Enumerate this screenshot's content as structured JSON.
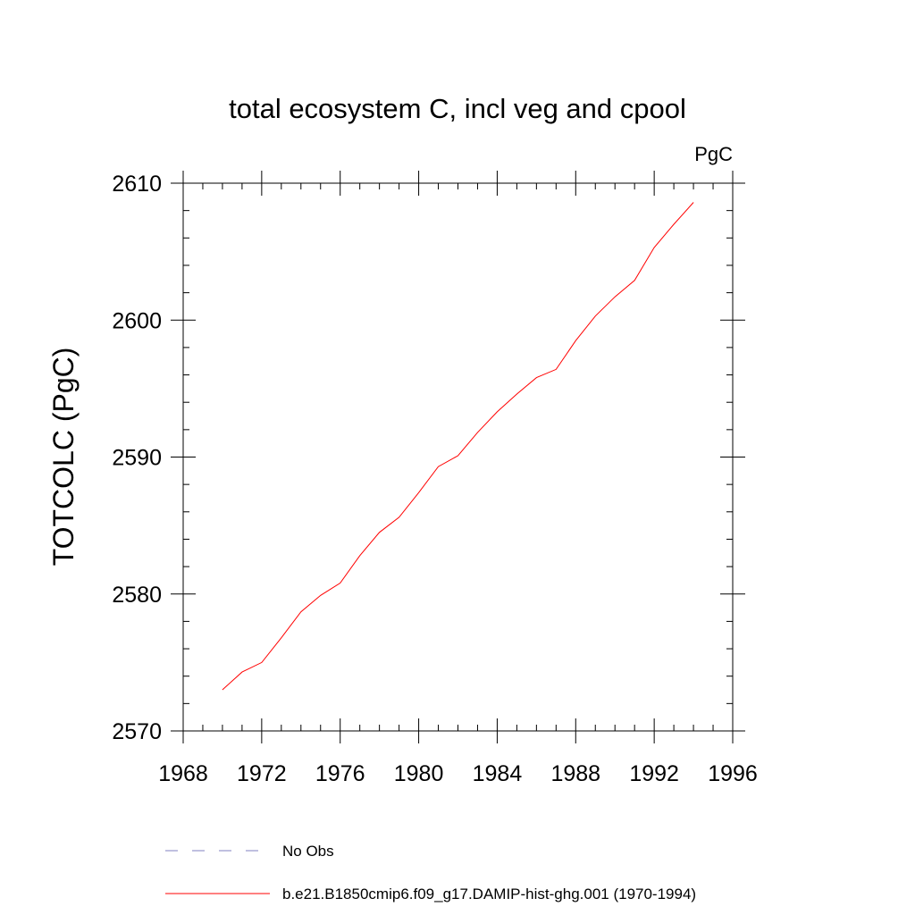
{
  "chart_data": {
    "type": "line",
    "title": "total ecosystem C, incl veg and cpool",
    "units": "PgC",
    "xlabel": "",
    "ylabel": "TOTCOLC  (PgC)",
    "xlim": [
      1968,
      1996
    ],
    "ylim": [
      2570,
      2610
    ],
    "x_ticks": [
      1968,
      1972,
      1976,
      1980,
      1984,
      1988,
      1992,
      1996
    ],
    "y_ticks": [
      2570,
      2580,
      2590,
      2600,
      2610
    ],
    "grid": false,
    "legend_position": "bottom",
    "series": [
      {
        "name": "b.e21.B1850cmip6.f09_g17.DAMIP-hist-ghg.001 (1970-1994)",
        "color": "#ff0000",
        "style": "solid",
        "x": [
          1970,
          1971,
          1972,
          1973,
          1974,
          1975,
          1976,
          1977,
          1978,
          1979,
          1980,
          1981,
          1982,
          1983,
          1984,
          1985,
          1986,
          1987,
          1988,
          1989,
          1990,
          1991,
          1992,
          1993,
          1994
        ],
        "y": [
          2573.0,
          2574.3,
          2575.0,
          2576.8,
          2578.7,
          2579.9,
          2580.8,
          2582.8,
          2584.5,
          2585.6,
          2587.4,
          2589.3,
          2590.1,
          2591.8,
          2593.3,
          2594.6,
          2595.8,
          2596.4,
          2598.5,
          2600.3,
          2601.7,
          2602.9,
          2605.3,
          2607.0,
          2608.6
        ]
      },
      {
        "name": "No Obs",
        "color": "#8080c0",
        "style": "dashed",
        "x": [],
        "y": []
      }
    ]
  }
}
